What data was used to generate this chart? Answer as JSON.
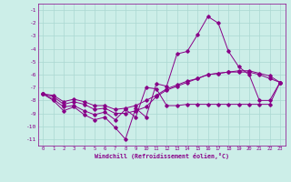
{
  "xlabel": "Windchill (Refroidissement éolien,°C)",
  "bg_color": "#cceee8",
  "grid_color": "#aad8d2",
  "line_color": "#880088",
  "hours": [
    0,
    1,
    2,
    3,
    4,
    5,
    6,
    7,
    8,
    9,
    10,
    11,
    12,
    13,
    14,
    15,
    16,
    17,
    18,
    19,
    20,
    21,
    22,
    23
  ],
  "series1": [
    -7.5,
    -8.0,
    -8.8,
    -8.5,
    -9.1,
    -9.5,
    -9.3,
    -10.1,
    -11.0,
    -8.6,
    -9.3,
    -6.7,
    -6.9,
    -4.4,
    -4.2,
    -2.9,
    -1.5,
    -2.0,
    -4.2,
    -5.4,
    -6.0,
    -8.0,
    -8.0,
    -6.6
  ],
  "series2": [
    -7.5,
    -7.9,
    -8.5,
    -8.4,
    -8.8,
    -9.1,
    -8.9,
    -9.5,
    -8.7,
    -9.3,
    -7.0,
    -7.1,
    -8.4,
    -8.4,
    -8.3,
    -8.3,
    -8.3,
    -8.3,
    -8.3,
    -8.3,
    -8.3,
    -8.3,
    -8.3,
    -6.6
  ],
  "series3": [
    -7.5,
    -7.7,
    -8.3,
    -8.1,
    -8.3,
    -8.7,
    -8.6,
    -9.0,
    -9.0,
    -8.8,
    -8.5,
    -7.7,
    -7.2,
    -6.9,
    -6.6,
    -6.3,
    -6.0,
    -5.9,
    -5.8,
    -5.8,
    -5.8,
    -6.0,
    -6.3,
    -6.6
  ],
  "series4": [
    -7.5,
    -7.6,
    -8.1,
    -7.9,
    -8.1,
    -8.4,
    -8.4,
    -8.7,
    -8.6,
    -8.4,
    -8.0,
    -7.6,
    -7.1,
    -6.8,
    -6.5,
    -6.3,
    -6.0,
    -5.9,
    -5.8,
    -5.7,
    -5.7,
    -5.9,
    -6.1,
    -6.6
  ],
  "ylim": [
    -11.5,
    -0.5
  ],
  "yticks": [
    -11,
    -10,
    -9,
    -8,
    -7,
    -6,
    -5,
    -4,
    -3,
    -2,
    -1
  ],
  "xlim": [
    -0.5,
    23.5
  ],
  "xticks": [
    0,
    1,
    2,
    3,
    4,
    5,
    6,
    7,
    8,
    9,
    10,
    11,
    12,
    13,
    14,
    15,
    16,
    17,
    18,
    19,
    20,
    21,
    22,
    23
  ]
}
